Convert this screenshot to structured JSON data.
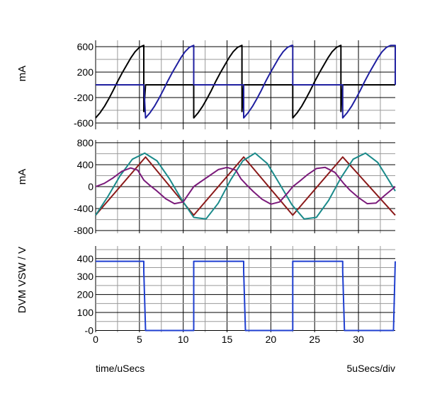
{
  "chart_data": [
    {
      "type": "line",
      "ylabel": "mA",
      "ylim": [
        -700,
        700
      ],
      "xlim": [
        0,
        34.2
      ],
      "yticks": [
        600,
        200,
        -200,
        -600
      ],
      "grid": true,
      "series": [
        {
          "color": "#000000",
          "x": [
            0,
            0.5,
            1,
            1.5,
            2,
            2.5,
            3,
            3.5,
            4,
            4.5,
            5,
            5.5,
            5.5,
            5.7,
            11.2,
            11.2,
            11.7,
            12.2,
            12.7,
            13.2,
            13.7,
            14.2,
            14.7,
            15.2,
            15.7,
            16.2,
            16.7,
            16.7,
            16.9,
            22.5,
            22.5,
            23,
            23.5,
            24,
            24.5,
            25,
            25.5,
            26,
            26.5,
            27,
            27.5,
            28,
            28,
            28.2,
            34.2
          ],
          "y": [
            -520,
            -440,
            -340,
            -220,
            -90,
            50,
            180,
            300,
            420,
            520,
            590,
            620,
            -420,
            0,
            0,
            -520,
            -440,
            -340,
            -220,
            -90,
            50,
            180,
            300,
            420,
            520,
            590,
            620,
            -420,
            0,
            0,
            -520,
            -440,
            -340,
            -220,
            -90,
            50,
            180,
            300,
            420,
            520,
            590,
            620,
            -420,
            0,
            0
          ]
        },
        {
          "color": "#1f1fa0",
          "x": [
            0,
            5.5,
            5.5,
            5.7,
            6.2,
            6.7,
            7.2,
            7.7,
            8.2,
            8.7,
            9.2,
            9.7,
            10.2,
            10.7,
            11.2,
            11.2,
            16.9,
            16.9,
            17.4,
            17.9,
            18.4,
            18.9,
            19.4,
            19.9,
            20.4,
            20.9,
            21.4,
            21.9,
            22.4,
            22.5,
            22.5,
            28.2,
            28.2,
            28.7,
            29.2,
            29.7,
            30.2,
            30.7,
            31.2,
            31.7,
            32.2,
            32.7,
            33.2,
            33.7,
            34.2,
            34.2
          ],
          "y": [
            0,
            0,
            0,
            -520,
            -440,
            -340,
            -220,
            -90,
            50,
            180,
            300,
            420,
            520,
            590,
            620,
            0,
            0,
            -520,
            -440,
            -340,
            -220,
            -90,
            50,
            180,
            300,
            420,
            520,
            590,
            620,
            620,
            0,
            0,
            -520,
            -440,
            -340,
            -220,
            -90,
            50,
            180,
            300,
            420,
            520,
            590,
            620,
            620,
            0
          ]
        }
      ]
    },
    {
      "type": "line",
      "ylabel": "mA",
      "ylim": [
        -850,
        850
      ],
      "xlim": [
        0,
        34.2
      ],
      "yticks": [
        800,
        400,
        0,
        -400,
        -800
      ],
      "grid": true,
      "series": [
        {
          "color": "#8b1a1a",
          "x": [
            0,
            5.7,
            11.2,
            16.9,
            22.5,
            28.2,
            34.2
          ],
          "y": [
            -520,
            540,
            -520,
            540,
            -520,
            540,
            -520
          ]
        },
        {
          "color": "#1a8a8a",
          "x": [
            0,
            1.4,
            2.8,
            4.2,
            5.6,
            7,
            8.4,
            9.8,
            11.2,
            12.6,
            14,
            15.4,
            16.8,
            18.2,
            19.6,
            21,
            22.4,
            23.8,
            25.2,
            26.6,
            28,
            29.4,
            30.8,
            32.2,
            33.6,
            34.2
          ],
          "y": [
            -520,
            -180,
            200,
            500,
            610,
            470,
            150,
            -230,
            -560,
            -590,
            -300,
            120,
            470,
            610,
            420,
            50,
            -330,
            -590,
            -560,
            -250,
            160,
            500,
            610,
            440,
            80,
            -80
          ]
        },
        {
          "color": "#7a1a7a",
          "x": [
            0,
            1,
            2,
            3,
            4,
            4.8,
            5.5,
            6.2,
            7,
            8,
            9,
            10,
            10.5,
            11.2,
            12,
            13,
            14,
            15,
            16,
            16.6,
            17.3,
            18,
            19,
            20,
            21,
            22,
            22.5,
            23.3,
            24.2,
            25.2,
            26.2,
            27.3,
            28.3,
            29,
            30,
            31,
            32,
            33,
            34.2
          ],
          "y": [
            0,
            60,
            160,
            280,
            340,
            300,
            120,
            20,
            -80,
            -220,
            -310,
            -280,
            -160,
            0,
            90,
            200,
            310,
            350,
            300,
            140,
            20,
            -90,
            -230,
            -320,
            -280,
            -100,
            0,
            100,
            220,
            330,
            350,
            260,
            60,
            -60,
            -200,
            -310,
            -300,
            -160,
            0
          ]
        }
      ]
    },
    {
      "type": "line",
      "ylabel": "DVM VSW / V",
      "xlabel": "time/uSecs",
      "scale_label": "5uSecs/div",
      "ylim": [
        -10,
        470
      ],
      "xlim": [
        0,
        34.2
      ],
      "yticks": [
        400,
        300,
        200,
        100,
        0
      ],
      "ytick_labels": [
        "400",
        "300",
        "200",
        "100",
        "-0"
      ],
      "xticks": [
        0,
        5,
        10,
        15,
        20,
        25,
        30
      ],
      "grid": true,
      "series": [
        {
          "color": "#1f3fd0",
          "x": [
            0,
            5.5,
            5.5,
            5.7,
            11.2,
            11.2,
            16.9,
            16.9,
            17.1,
            22.5,
            22.5,
            28.2,
            28.2,
            28.4,
            34,
            34.2
          ],
          "y": [
            385,
            385,
            330,
            0,
            0,
            385,
            385,
            330,
            0,
            0,
            385,
            385,
            330,
            0,
            0,
            385
          ]
        }
      ]
    }
  ]
}
